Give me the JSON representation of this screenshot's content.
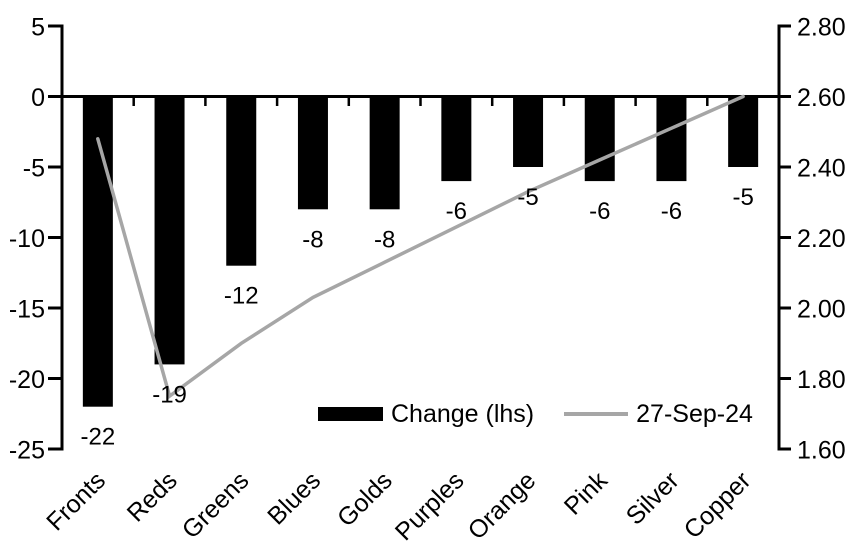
{
  "chart_data": {
    "type": "combo-bar-line",
    "background": "#FFFFFF",
    "grid": false,
    "categories": [
      "Fronts",
      "Reds",
      "Greens",
      "Blues",
      "Golds",
      "Purples",
      "Orange",
      "Pink",
      "Silver",
      "Copper"
    ],
    "series": [
      {
        "name": "Change (lhs)",
        "chart": "bar",
        "axis": "left",
        "color": "#000000",
        "values": [
          -22,
          -19,
          -12,
          -8,
          -8,
          -6,
          -5,
          -6,
          -6,
          -5
        ],
        "data_labels": [
          "-22",
          "-19",
          "-12",
          "-8",
          "-8",
          "-6",
          "-5",
          "-6",
          "-6",
          "-5"
        ]
      },
      {
        "name": "27-Sep-24",
        "chart": "line",
        "axis": "right",
        "color": "#A6A6A6",
        "values": [
          2.48,
          1.75,
          1.9,
          2.03,
          2.13,
          2.23,
          2.33,
          2.42,
          2.51,
          2.6
        ]
      }
    ],
    "left_axis": {
      "min": -25,
      "max": 5,
      "tick_step": 5,
      "tick_labels": [
        "5",
        "0",
        "-5",
        "-10",
        "-15",
        "-20",
        "-25"
      ]
    },
    "right_axis": {
      "min": 1.6,
      "max": 2.8,
      "tick_step": 0.2,
      "tick_labels": [
        "2.80",
        "2.60",
        "2.40",
        "2.20",
        "2.00",
        "1.80",
        "1.60"
      ]
    },
    "legend": {
      "position": "bottom-inside",
      "entries": [
        {
          "label": "Change (lhs)",
          "swatch": "bar",
          "color": "#000000"
        },
        {
          "label": "27-Sep-24",
          "swatch": "line",
          "color": "#A6A6A6"
        }
      ]
    },
    "axis_color": "#000000",
    "text_color": "#000000"
  }
}
